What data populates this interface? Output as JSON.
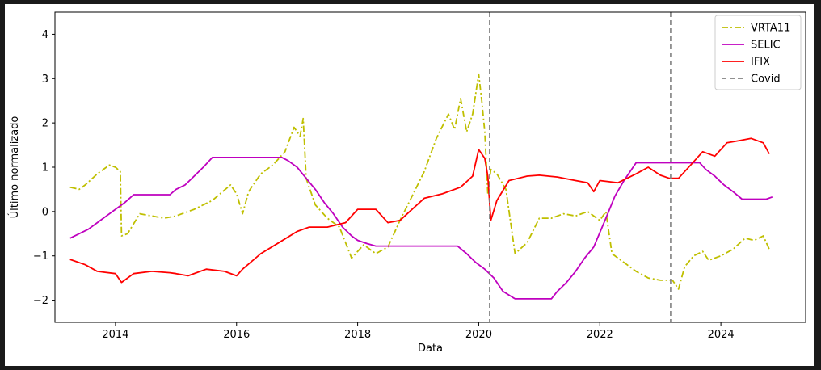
{
  "chart_data": {
    "type": "line",
    "xlabel": "Data",
    "ylabel": "Último normalizado",
    "xlim": [
      2013.0,
      2025.4
    ],
    "ylim": [
      -2.5,
      4.5
    ],
    "xticks": [
      {
        "value": 2014,
        "label": "2014"
      },
      {
        "value": 2016,
        "label": "2016"
      },
      {
        "value": 2018,
        "label": "2018"
      },
      {
        "value": 2020,
        "label": "2020"
      },
      {
        "value": 2022,
        "label": "2022"
      },
      {
        "value": 2024,
        "label": "2024"
      }
    ],
    "yticks": [
      {
        "value": -2,
        "label": "−2"
      },
      {
        "value": -1,
        "label": "−1"
      },
      {
        "value": 0,
        "label": "0"
      },
      {
        "value": 1,
        "label": "1"
      },
      {
        "value": 2,
        "label": "2"
      },
      {
        "value": 3,
        "label": "3"
      },
      {
        "value": 4,
        "label": "4"
      }
    ],
    "grid": false,
    "legend_position": "top-right",
    "series": [
      {
        "name": "VRTA11",
        "color": "#bfbf00",
        "style": "dashdot",
        "x": [
          2013.25,
          2013.4,
          2013.5,
          2013.7,
          2013.9,
          2014.0,
          2014.08,
          2014.1,
          2014.2,
          2014.4,
          2014.6,
          2014.8,
          2015.0,
          2015.3,
          2015.6,
          2015.9,
          2016.0,
          2016.1,
          2016.2,
          2016.4,
          2016.6,
          2016.8,
          2016.95,
          2017.05,
          2017.1,
          2017.15,
          2017.3,
          2017.5,
          2017.7,
          2017.9,
          2018.1,
          2018.3,
          2018.5,
          2018.7,
          2018.9,
          2019.1,
          2019.3,
          2019.5,
          2019.6,
          2019.7,
          2019.8,
          2019.9,
          2020.0,
          2020.05,
          2020.1,
          2020.15,
          2020.2,
          2020.3,
          2020.45,
          2020.6,
          2020.8,
          2021.0,
          2021.2,
          2021.4,
          2021.6,
          2021.8,
          2022.0,
          2022.1,
          2022.2,
          2022.4,
          2022.6,
          2022.8,
          2023.0,
          2023.2,
          2023.3,
          2023.4,
          2023.55,
          2023.7,
          2023.8,
          2024.0,
          2024.2,
          2024.4,
          2024.55,
          2024.7,
          2024.8
        ],
        "values": [
          0.55,
          0.5,
          0.6,
          0.85,
          1.05,
          1.0,
          0.9,
          -0.55,
          -0.5,
          -0.05,
          -0.1,
          -0.15,
          -0.1,
          0.05,
          0.25,
          0.6,
          0.4,
          -0.05,
          0.45,
          0.85,
          1.05,
          1.35,
          1.9,
          1.7,
          2.1,
          0.75,
          0.15,
          -0.15,
          -0.35,
          -1.05,
          -0.75,
          -0.95,
          -0.8,
          -0.2,
          0.35,
          0.9,
          1.65,
          2.2,
          1.85,
          2.55,
          1.8,
          2.2,
          3.1,
          2.5,
          1.8,
          0.4,
          0.95,
          0.85,
          0.5,
          -0.95,
          -0.7,
          -0.15,
          -0.15,
          -0.05,
          -0.1,
          0.0,
          -0.2,
          0.0,
          -0.95,
          -1.15,
          -1.35,
          -1.5,
          -1.55,
          -1.55,
          -1.75,
          -1.25,
          -1.0,
          -0.9,
          -1.1,
          -1.0,
          -0.85,
          -0.6,
          -0.65,
          -0.55,
          -0.85
        ]
      },
      {
        "name": "SELIC",
        "color": "#bf00bf",
        "style": "solid",
        "x": [
          2013.25,
          2013.4,
          2013.55,
          2013.7,
          2013.85,
          2014.0,
          2014.15,
          2014.3,
          2014.9,
          2015.0,
          2015.15,
          2015.3,
          2015.45,
          2015.6,
          2016.75,
          2016.85,
          2017.0,
          2017.15,
          2017.3,
          2017.45,
          2017.6,
          2017.75,
          2017.9,
          2018.0,
          2018.15,
          2018.3,
          2019.65,
          2019.8,
          2019.95,
          2020.1,
          2020.25,
          2020.4,
          2020.6,
          2021.2,
          2021.3,
          2021.45,
          2021.6,
          2021.75,
          2021.9,
          2022.1,
          2022.25,
          2022.4,
          2022.6,
          2023.65,
          2023.75,
          2023.9,
          2024.05,
          2024.2,
          2024.35,
          2024.75,
          2024.85
        ],
        "values": [
          -0.6,
          -0.5,
          -0.4,
          -0.25,
          -0.1,
          0.05,
          0.2,
          0.38,
          0.38,
          0.5,
          0.6,
          0.8,
          1.0,
          1.22,
          1.22,
          1.15,
          1.0,
          0.75,
          0.5,
          0.2,
          -0.05,
          -0.35,
          -0.55,
          -0.65,
          -0.72,
          -0.78,
          -0.78,
          -0.95,
          -1.15,
          -1.3,
          -1.5,
          -1.8,
          -1.97,
          -1.97,
          -1.8,
          -1.6,
          -1.35,
          -1.05,
          -0.8,
          -0.15,
          0.35,
          0.7,
          1.1,
          1.1,
          0.95,
          0.8,
          0.6,
          0.45,
          0.28,
          0.28,
          0.33
        ]
      },
      {
        "name": "IFIX",
        "color": "#ff0000",
        "style": "solid",
        "x": [
          2013.25,
          2013.5,
          2013.7,
          2014.0,
          2014.1,
          2014.3,
          2014.6,
          2014.9,
          2015.0,
          2015.2,
          2015.5,
          2015.8,
          2016.0,
          2016.1,
          2016.4,
          2016.7,
          2017.0,
          2017.2,
          2017.5,
          2017.8,
          2018.0,
          2018.3,
          2018.5,
          2018.7,
          2018.9,
          2019.1,
          2019.4,
          2019.7,
          2019.9,
          2020.0,
          2020.1,
          2020.15,
          2020.2,
          2020.3,
          2020.5,
          2020.8,
          2021.0,
          2021.3,
          2021.6,
          2021.8,
          2021.9,
          2022.0,
          2022.3,
          2022.6,
          2022.8,
          2023.0,
          2023.15,
          2023.3,
          2023.5,
          2023.7,
          2023.9,
          2024.1,
          2024.3,
          2024.5,
          2024.7,
          2024.8
        ],
        "values": [
          -1.08,
          -1.2,
          -1.35,
          -1.4,
          -1.6,
          -1.4,
          -1.35,
          -1.38,
          -1.4,
          -1.45,
          -1.3,
          -1.35,
          -1.45,
          -1.3,
          -0.95,
          -0.7,
          -0.45,
          -0.35,
          -0.35,
          -0.25,
          0.05,
          0.05,
          -0.25,
          -0.2,
          0.05,
          0.3,
          0.4,
          0.55,
          0.8,
          1.4,
          1.2,
          0.8,
          -0.2,
          0.25,
          0.7,
          0.8,
          0.82,
          0.78,
          0.7,
          0.65,
          0.45,
          0.7,
          0.65,
          0.85,
          1.0,
          0.82,
          0.75,
          0.75,
          1.05,
          1.35,
          1.25,
          1.55,
          1.6,
          1.65,
          1.55,
          1.3
        ]
      }
    ],
    "vlines": [
      {
        "name": "Covid",
        "color": "#808080",
        "style": "dashed",
        "x": [
          2020.18,
          2023.17
        ]
      }
    ]
  },
  "legend": {
    "entries": [
      {
        "label": "VRTA11",
        "color": "#bfbf00",
        "style": "dashdot"
      },
      {
        "label": "SELIC",
        "color": "#bf00bf",
        "style": "solid"
      },
      {
        "label": "IFIX",
        "color": "#ff0000",
        "style": "solid"
      },
      {
        "label": "Covid",
        "color": "#808080",
        "style": "dashed"
      }
    ]
  }
}
